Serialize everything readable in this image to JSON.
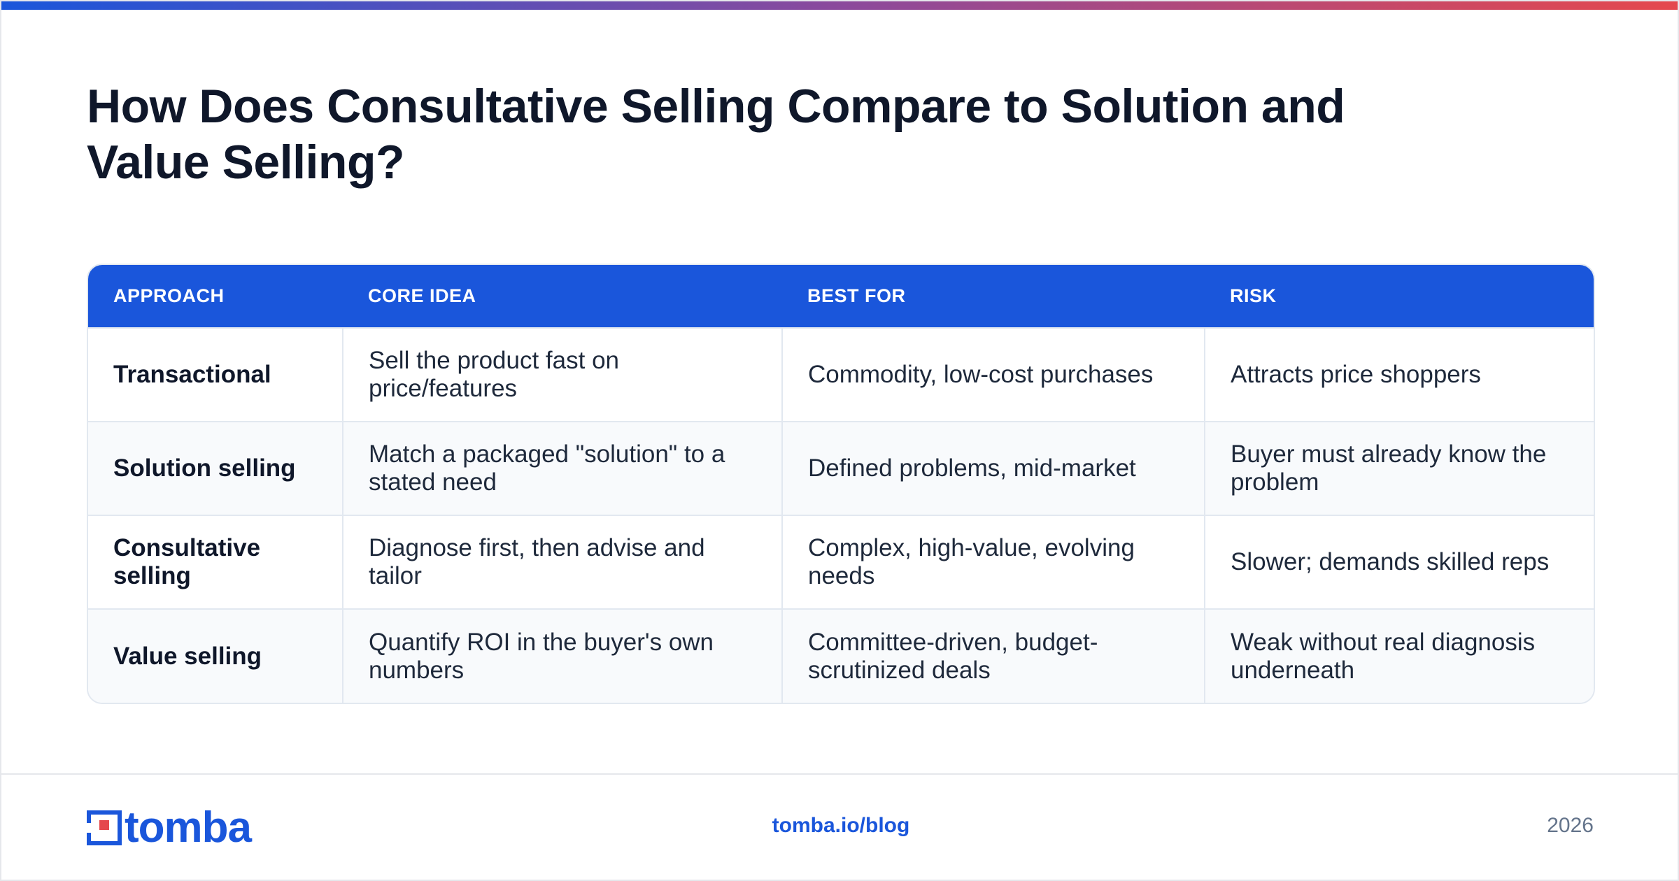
{
  "title_lines": [
    "How Does Consultative Selling Compare to Solution and",
    "Value Selling?"
  ],
  "table": {
    "headers": [
      "APPROACH",
      "CORE IDEA",
      "BEST FOR",
      "RISK"
    ],
    "rows": [
      [
        "Transactional",
        "Sell the product fast on price/features",
        "Commodity, low-cost purchases",
        "Attracts price shoppers"
      ],
      [
        "Solution selling",
        "Match a packaged \"solution\" to a stated need",
        "Defined problems, mid-market",
        "Buyer must already know the problem"
      ],
      [
        "Consultative selling",
        "Diagnose first, then advise and tailor",
        "Complex, high-value, evolving needs",
        "Slower; demands skilled reps"
      ],
      [
        "Value selling",
        "Quantify ROI in the buyer's own numbers",
        "Committee-driven, budget-scrutinized deals",
        "Weak without real diagnosis underneath"
      ]
    ]
  },
  "footer": {
    "brand": "tomba",
    "link": "tomba.io/blog",
    "year": "2026"
  },
  "colors": {
    "accent": "#1a56db",
    "gradient_start": "#1a56db",
    "gradient_end": "#e5484d",
    "logo_red": "#e5484d"
  }
}
